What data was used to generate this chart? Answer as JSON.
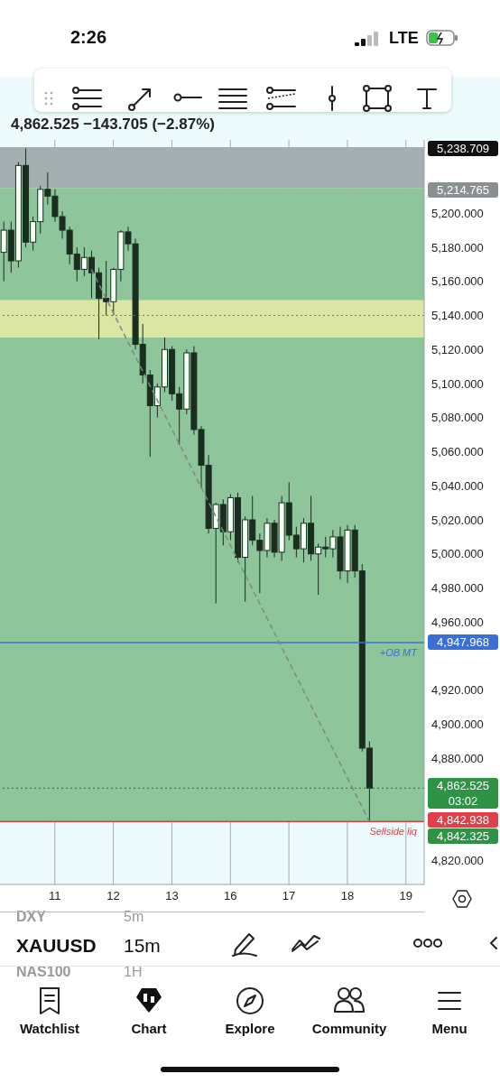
{
  "chart_data": {
    "type": "candlestick",
    "title": "4,862.525 −143.705 (−2.87%)",
    "color": "#1a2e20",
    "categories": [
      null,
      null,
      null,
      null,
      null,
      null,
      null,
      "11",
      null,
      null,
      null,
      null,
      null,
      null,
      null,
      "12",
      null,
      null,
      null,
      null,
      null,
      null,
      null,
      "13",
      null,
      null,
      null,
      null,
      null,
      null,
      null,
      "16",
      null,
      null,
      null,
      null,
      null,
      null,
      null,
      "17",
      null,
      null,
      null,
      null,
      null,
      null,
      null,
      "18",
      null,
      null,
      null,
      null,
      null,
      null,
      null,
      "19",
      null,
      null
    ],
    "ohlc": [
      [
        5177,
        5195,
        5160,
        5190
      ],
      [
        5190,
        5195,
        5165,
        5172
      ],
      [
        5172,
        5230,
        5168,
        5228
      ],
      [
        5228,
        5238,
        5180,
        5183
      ],
      [
        5183,
        5198,
        5178,
        5195
      ],
      [
        5195,
        5216,
        5188,
        5214
      ],
      [
        5214,
        5224,
        5205,
        5210
      ],
      [
        5210,
        5214,
        5195,
        5198
      ],
      [
        5198,
        5201,
        5185,
        5190
      ],
      [
        5190,
        5192,
        5170,
        5176
      ],
      [
        5176,
        5180,
        5160,
        5167
      ],
      [
        5167,
        5180,
        5163,
        5174
      ],
      [
        5174,
        5178,
        5150,
        5165
      ],
      [
        5165,
        5168,
        5126,
        5150
      ],
      [
        5150,
        5172,
        5140,
        5148
      ],
      [
        5148,
        5168,
        5140,
        5167
      ],
      [
        5167,
        5190,
        5160,
        5189
      ],
      [
        5189,
        5192,
        5178,
        5182
      ],
      [
        5182,
        5185,
        5120,
        5123
      ],
      [
        5123,
        5135,
        5100,
        5105
      ],
      [
        5105,
        5108,
        5057,
        5087
      ],
      [
        5087,
        5100,
        5080,
        5098
      ],
      [
        5098,
        5127,
        5095,
        5120
      ],
      [
        5120,
        5122,
        5090,
        5094
      ],
      [
        5094,
        5098,
        5064,
        5085
      ],
      [
        5085,
        5120,
        5082,
        5118
      ],
      [
        5118,
        5122,
        5070,
        5073
      ],
      [
        5073,
        5075,
        5039,
        5052
      ],
      [
        5052,
        5058,
        5012,
        5015
      ],
      [
        5015,
        5030,
        4971,
        5029
      ],
      [
        5029,
        5032,
        5005,
        5013
      ],
      [
        5013,
        5035,
        5008,
        5033
      ],
      [
        5033,
        5036,
        4995,
        4998
      ],
      [
        4998,
        5022,
        4972,
        5020
      ],
      [
        5020,
        5034,
        5005,
        5008
      ],
      [
        5008,
        5012,
        4977,
        5002
      ],
      [
        5002,
        5021,
        4998,
        5018
      ],
      [
        5018,
        5020,
        4998,
        5001
      ],
      [
        5001,
        5034,
        4996,
        5030
      ],
      [
        5030,
        5042,
        5008,
        5011
      ],
      [
        5011,
        5016,
        4998,
        5003
      ],
      [
        5003,
        5021,
        4995,
        5018
      ],
      [
        5018,
        5034,
        4996,
        5000
      ],
      [
        5000,
        5006,
        4976,
        5004
      ],
      [
        5004,
        5010,
        4998,
        5003
      ],
      [
        5003,
        5014,
        4998,
        5010
      ],
      [
        5010,
        5016,
        4985,
        4990
      ],
      [
        4990,
        5017,
        4983,
        5014
      ],
      [
        5014,
        5017,
        4986,
        4990
      ],
      [
        4990,
        4994,
        4884,
        4886
      ],
      [
        4886,
        4890,
        4843,
        4862.525
      ],
      null,
      null,
      null,
      null,
      null,
      null,
      null
    ],
    "series": [
      {
        "type": "line",
        "color": "#7d8a80",
        "line_style": "dashed",
        "values": [
          null,
          null,
          null,
          null,
          null,
          null,
          null,
          null,
          null,
          null,
          null,
          null,
          5167,
          null,
          null,
          null,
          null,
          null,
          null,
          null,
          null,
          null,
          null,
          null,
          null,
          null,
          null,
          null,
          null,
          null,
          null,
          null,
          null,
          null,
          null,
          null,
          null,
          null,
          null,
          null,
          null,
          null,
          null,
          null,
          null,
          null,
          null,
          null,
          null,
          null,
          4843,
          null,
          null,
          null,
          null,
          null,
          null,
          null
        ]
      }
    ],
    "ylim": [
      4806,
      5243
    ],
    "yticks": [
      {
        "value": 4820,
        "label": "4,820.000"
      },
      {
        "value": 4880,
        "label": "4,880.000"
      },
      {
        "value": 4900,
        "label": "4,900.000"
      },
      {
        "value": 4920,
        "label": "4,920.000"
      },
      {
        "value": 4960,
        "label": "4,960.000"
      },
      {
        "value": 4980,
        "label": "4,980.000"
      },
      {
        "value": 5000,
        "label": "5,000.000"
      },
      {
        "value": 5020,
        "label": "5,020.000"
      },
      {
        "value": 5040,
        "label": "5,040.000"
      },
      {
        "value": 5060,
        "label": "5,060.000"
      },
      {
        "value": 5080,
        "label": "5,080.000"
      },
      {
        "value": 5100,
        "label": "5,100.000"
      },
      {
        "value": 5120,
        "label": "5,120.000"
      },
      {
        "value": 5140,
        "label": "5,140.000"
      },
      {
        "value": 5160,
        "label": "5,160.000"
      },
      {
        "value": 5180,
        "label": "5,180.000"
      },
      {
        "value": 5200,
        "label": "5,200.000"
      }
    ],
    "grid": "x",
    "bands": [
      {
        "axis": "y",
        "from": 4842.938,
        "to": 5214.765,
        "color": "#8fc59a"
      },
      {
        "axis": "y",
        "from": 5214.765,
        "to": 5238.709,
        "color": "#a5aeb0"
      },
      {
        "axis": "y",
        "from": 5127,
        "to": 5149,
        "color": "#dce6a4"
      }
    ],
    "ref_lines": [
      {
        "axis": "y",
        "value": 5140,
        "color": "#6b7a5a",
        "line_style": "dotted"
      },
      {
        "axis": "y",
        "value": 4947.968,
        "label": "+OB MT",
        "color": "#3b6fd8",
        "line_style": "solid"
      },
      {
        "axis": "y",
        "value": 4862.525,
        "color": "#4a5a50",
        "line_style": "dotted"
      },
      {
        "axis": "y",
        "value": 4842.938,
        "label": "Sellside liq",
        "color": "#e0404a",
        "line_style": "solid"
      }
    ],
    "annotations": [
      "5,238.709",
      "5,214.765",
      "4,947.968",
      "4,862.525",
      "03:02",
      "4,842.938",
      "4,842.325",
      "2:26",
      "LTE",
      "DXY",
      "5m",
      "XAUUSD",
      "15m",
      "NAS100",
      "1H",
      "Watchlist",
      "Chart",
      "Explore",
      "Community",
      "Menu"
    ]
  }
}
